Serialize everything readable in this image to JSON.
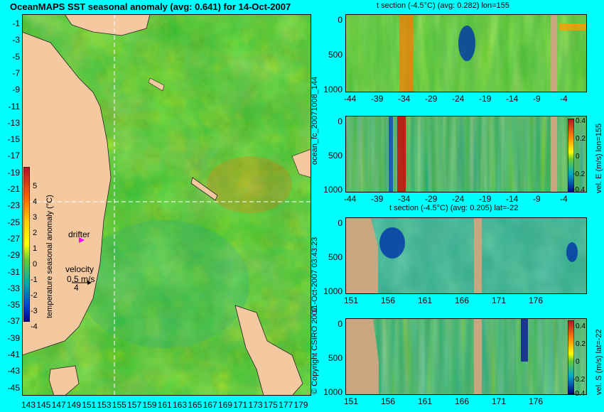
{
  "title": "OceanMAPS SST seasonal anomaly (avg: 0.641) for 14-Oct-2007",
  "map": {
    "lat_ticks": [
      "-1",
      "-3",
      "-5",
      "-7",
      "-9",
      "-11",
      "-13",
      "-15",
      "-17",
      "-19",
      "-21",
      "-23",
      "-25",
      "-27",
      "-29",
      "-31",
      "-33",
      "-35",
      "-37",
      "-39",
      "-41",
      "-43",
      "-45"
    ],
    "lon_ticks": [
      "143",
      "145",
      "147",
      "149",
      "151",
      "153",
      "155",
      "157",
      "159",
      "161",
      "163",
      "165",
      "167",
      "169",
      "171",
      "173",
      "175",
      "177",
      "179"
    ],
    "colorbar_label": "temperature seasonal anomaly (°C)",
    "colorbar_ticks": [
      "5",
      "4",
      "3",
      "2",
      "1",
      "0",
      "-1",
      "-2",
      "-3",
      "-4"
    ],
    "drifter_label": "drifter",
    "velocity_label": "velocity",
    "velocity_value": "0.5 m/s",
    "velocity_scale": "4"
  },
  "side_labels": {
    "forecast": "ocean_fc_20071008_144",
    "copyright": "© Copyright CSIRO 2007",
    "date": "11-Oct-2007 03:43:23"
  },
  "panels": [
    {
      "title": "t section (-4.5°C) (avg: 0.282) lon=155",
      "y_ticks": [
        "0",
        "500",
        "1000"
      ],
      "x_ticks": [
        "-44",
        "-39",
        "-34",
        "-29",
        "-24",
        "-19",
        "-14",
        "-9",
        "-4"
      ]
    },
    {
      "title": "",
      "y_ticks": [
        "0",
        "500",
        "1000"
      ],
      "x_ticks": [
        "-44",
        "-39",
        "-34",
        "-29",
        "-24",
        "-19",
        "-14",
        "-9",
        "-4"
      ],
      "colorbar_label": "vel. E (m/s) lon=155",
      "colorbar_ticks": [
        "0.4",
        "0.2",
        "0",
        "-0.2",
        "-0.4"
      ]
    },
    {
      "title": "t section (-4.5°C) (avg: 0.205) lat=-22",
      "y_ticks": [
        "0",
        "500",
        "1000"
      ],
      "x_ticks": [
        "151",
        "156",
        "161",
        "166",
        "171",
        "176"
      ]
    },
    {
      "title": "",
      "y_ticks": [
        "0",
        "500",
        "1000"
      ],
      "x_ticks": [
        "151",
        "156",
        "161",
        "166",
        "171",
        "176"
      ],
      "colorbar_label": "vel. S (m/s) lat=-22",
      "colorbar_ticks": [
        "0.4",
        "0.2",
        "0",
        "-0.2",
        "-0.4"
      ]
    }
  ],
  "colors": {
    "background": "#00ffff",
    "ocean_base": "#33bb33",
    "land": "#f5c9a0",
    "section_land": "#c8a67f"
  }
}
